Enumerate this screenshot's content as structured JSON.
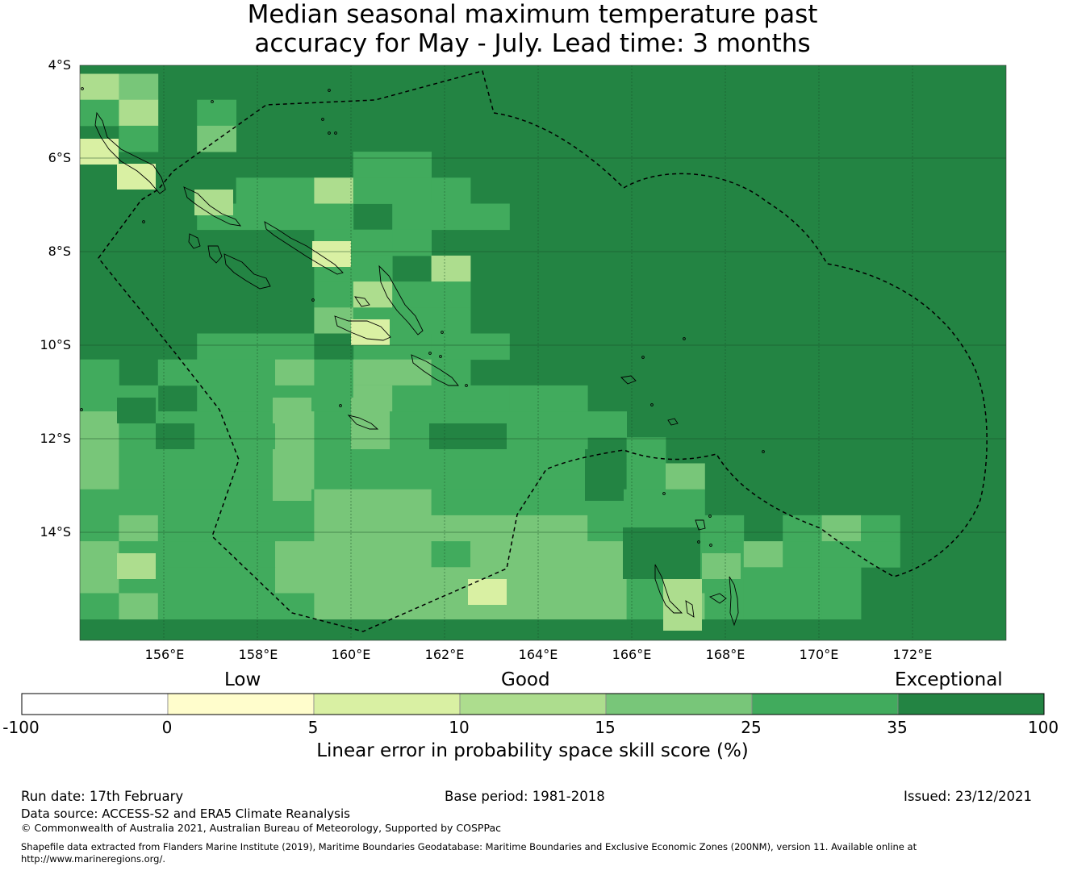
{
  "title": {
    "line1": "Median seasonal maximum temperature past",
    "line2": "accuracy for May - July. Lead time: 3 months"
  },
  "map": {
    "lat_labels": [
      "4°S",
      "6°S",
      "8°S",
      "10°S",
      "12°S",
      "14°S"
    ],
    "lon_labels": [
      "156°E",
      "158°E",
      "160°E",
      "162°E",
      "164°E",
      "166°E",
      "168°E",
      "170°E",
      "172°E"
    ],
    "extent": {
      "lon_min": 154.2,
      "lon_max": 174.0,
      "lat_min": -16.3,
      "lat_max": -4.0
    }
  },
  "colorbar": {
    "categories": [
      "Low",
      "Good",
      "Exceptional"
    ],
    "ticks": [
      "-100",
      "0",
      "5",
      "10",
      "15",
      "25",
      "35",
      "100"
    ],
    "colors": [
      "#ffffff",
      "#fffdcc",
      "#d9f0a3",
      "#addd8e",
      "#78c679",
      "#41ab5d",
      "#238443"
    ],
    "title": "Linear error in probability space skill score (%)"
  },
  "footer": {
    "run_date": "Run date: 17th February",
    "base_period": "Base period: 1981-2018",
    "issued": "Issued: 23/12/2021",
    "data_source": "Data source: ACCESS-S2 and ERA5 Climate Reanalysis",
    "copyright": "© Commonwealth of Australia 2021, Australian Bureau of Meteorology, Supported by COSPPac",
    "shapefile_line1": "Shapefile data extracted from Flanders Marine Institute (2019), Maritime Boundaries Geodatabase: Maritime Boundaries and Exclusive Economic Zones (200NM), version 11. Available online at",
    "shapefile_line2": "http://www.marineregions.org/."
  }
}
